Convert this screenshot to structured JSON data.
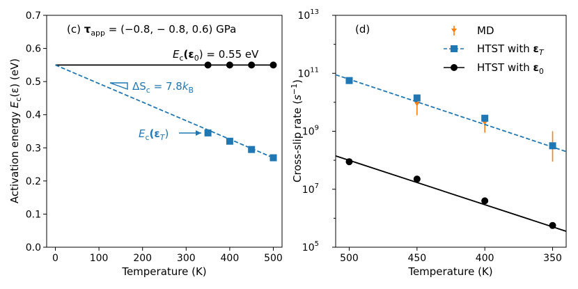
{
  "chart_data": [
    {
      "type": "scatter",
      "panel": "(c)",
      "title": "(c) τ_app = (−0.8, −0.8, 0.6) GPa",
      "title_parts": {
        "label": "(c)",
        "symbol": "τ",
        "sub": "app",
        "value": " = (−0.8, − 0.8, 0.6) GPa"
      },
      "xlabel": "Temperature (K)",
      "ylabel": "Activation energy E_c(ε) (eV)",
      "ylabel_parts": {
        "pre": "Activation energy ",
        "E": "E",
        "c": "c",
        "arg": "(ε) (eV)"
      },
      "xlim": [
        -20,
        520
      ],
      "ylim": [
        0.0,
        0.7
      ],
      "xticks": [
        "0",
        "100",
        "200",
        "300",
        "400",
        "500"
      ],
      "xtick_values": [
        0,
        100,
        200,
        300,
        400,
        500
      ],
      "yticks": [
        "0.0",
        "0.1",
        "0.2",
        "0.3",
        "0.4",
        "0.5",
        "0.6",
        "0.7"
      ],
      "ytick_values": [
        0.0,
        0.1,
        0.2,
        0.3,
        0.4,
        0.5,
        0.6,
        0.7
      ],
      "series": [
        {
          "name": "E_c(ε0)",
          "color": "#000000",
          "marker": "circle",
          "line": "solid",
          "line_x": [
            0,
            500
          ],
          "line_y": [
            0.55,
            0.55
          ],
          "x": [
            350,
            400,
            450,
            500
          ],
          "y": [
            0.55,
            0.55,
            0.55,
            0.55
          ]
        },
        {
          "name": "E_c(εT)",
          "color": "#1f77b4",
          "marker": "square",
          "line": "dashed",
          "line_x": [
            0,
            500
          ],
          "line_y": [
            0.55,
            0.27
          ],
          "x": [
            350,
            400,
            450,
            500
          ],
          "y": [
            0.345,
            0.32,
            0.295,
            0.27
          ]
        }
      ],
      "annotations": {
        "black_label": {
          "E": "E",
          "c": "c",
          "arg": "(ε",
          "sub": "0",
          "rest": ") = 0.55 eV"
        },
        "entropy": {
          "pre": "ΔS",
          "c": "c",
          "mid": " = 7.8",
          "k": "k",
          "B": "B"
        },
        "blue_label": {
          "E": "E",
          "c": "c",
          "arg": "(ε",
          "sub": "T",
          "rest": ")"
        }
      }
    },
    {
      "type": "scatter",
      "panel": "(d)",
      "title": "(d)",
      "xlabel": "Temperature (K)",
      "ylabel": "Cross-slip rate (s^-1)",
      "ylabel_parts": {
        "pre": "Cross-slip rate (",
        "s": "s",
        "exp": "−1",
        "post": ")"
      },
      "yscale": "log",
      "x_reversed": true,
      "xlim": [
        510,
        340
      ],
      "ylim_log10": [
        5,
        13
      ],
      "xticks": [
        "500",
        "450",
        "400",
        "350"
      ],
      "xtick_values": [
        500,
        450,
        400,
        350
      ],
      "yticks_base": "10",
      "yticks_exp": [
        "5",
        "7",
        "9",
        "11",
        "13"
      ],
      "ytick_log10": [
        5,
        7,
        9,
        11,
        13
      ],
      "legend": {
        "position": "top-right",
        "entries": [
          "MD",
          "HTST with ε_T",
          "HTST with ε_0"
        ]
      },
      "legend_parts": {
        "md": "MD",
        "htst": "HTST with ",
        "eps": "ε",
        "subT": "T",
        "sub0": "0"
      },
      "series": [
        {
          "name": "MD",
          "color": "#ff7f0e",
          "marker": "errorbar",
          "x": [
            450,
            400,
            350
          ],
          "log10_y": [
            9.95,
            9.3,
            8.5
          ],
          "log10_lo": [
            9.55,
            8.95,
            7.95
          ],
          "log10_hi": [
            10.2,
            9.45,
            9.0
          ]
        },
        {
          "name": "HTST with ε_T",
          "color": "#1f77b4",
          "marker": "square",
          "line": "dashed",
          "x": [
            500,
            450,
            400,
            350
          ],
          "log10_y": [
            10.75,
            10.15,
            9.45,
            8.5
          ],
          "fit_x": [
            510,
            340
          ],
          "fit_log10_y": [
            10.95,
            8.3
          ]
        },
        {
          "name": "HTST with ε_0",
          "color": "#000000",
          "marker": "circle",
          "line": "solid",
          "x": [
            500,
            450,
            400,
            350
          ],
          "log10_y": [
            7.95,
            7.35,
            6.6,
            5.75
          ],
          "fit_x": [
            510,
            340
          ],
          "fit_log10_y": [
            8.15,
            5.55
          ]
        }
      ]
    }
  ]
}
